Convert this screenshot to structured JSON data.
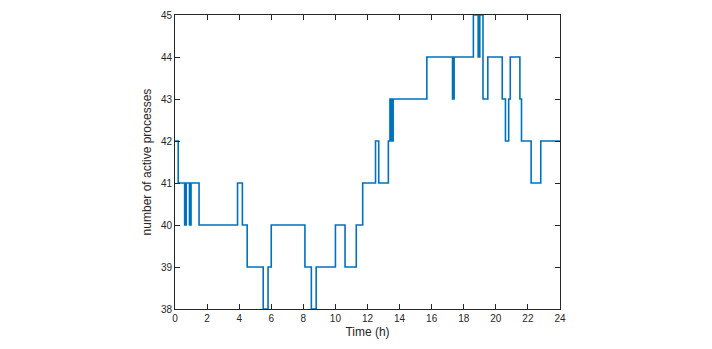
{
  "chart_data": {
    "type": "line",
    "x_label": "Time (h)",
    "y_label": "number of active processes",
    "x": [
      0,
      0.2,
      0.6,
      0.7,
      0.9,
      1.0,
      1.5,
      3.9,
      4.2,
      4.5,
      5.5,
      5.8,
      6.0,
      8.1,
      8.5,
      8.8,
      10.0,
      10.6,
      11.3,
      11.7,
      12.5,
      12.7,
      13.3,
      13.4,
      13.5,
      13.6,
      15.7,
      17.3,
      17.4,
      18.6,
      18.9,
      19.0,
      19.2,
      19.5,
      20.4,
      20.6,
      20.8,
      20.9,
      21.5,
      21.6,
      22.2,
      22.8,
      24
    ],
    "values": [
      42,
      41,
      40,
      41,
      40,
      41,
      40,
      41,
      40,
      39,
      38,
      39,
      40,
      39,
      38,
      39,
      40,
      39,
      40,
      41,
      42,
      41,
      42,
      43,
      42,
      43,
      44,
      43,
      44,
      45,
      44,
      45,
      43,
      44,
      43,
      42,
      43,
      44,
      43,
      42,
      41,
      42,
      42
    ],
    "color": "#0072bd",
    "line_style": "step",
    "xlim": [
      0,
      24
    ],
    "ylim": [
      38,
      45
    ],
    "xticks": [
      0,
      2,
      4,
      6,
      8,
      10,
      12,
      14,
      16,
      18,
      20,
      22,
      24
    ],
    "yticks": [
      38,
      39,
      40,
      41,
      42,
      43,
      44,
      45
    ],
    "grid": false
  }
}
